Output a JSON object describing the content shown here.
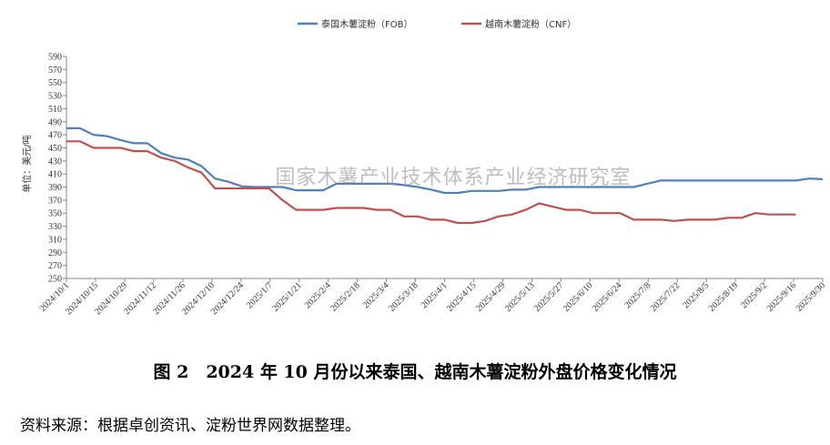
{
  "chart_data": {
    "type": "line",
    "ylabel": "单位：美元/吨",
    "ylim": [
      250,
      590
    ],
    "yticks": [
      250,
      270,
      290,
      310,
      330,
      350,
      370,
      390,
      410,
      430,
      450,
      470,
      490,
      510,
      530,
      550,
      570,
      590
    ],
    "grid": false,
    "legend_position": "top-center",
    "x_tick_labels": [
      "2024/10/1",
      "2024/10/15",
      "2024/10/29",
      "2024/11/12",
      "2024/11/26",
      "2024/12/10",
      "2024/12/24",
      "2025/1/7",
      "2025/1/21",
      "2025/2/4",
      "2025/2/18",
      "2025/3/4",
      "2025/3/18",
      "2025/4/1",
      "2025/4/15",
      "2025/4/29",
      "2025/5/13",
      "2025/5/27",
      "2025/6/10",
      "2025/6/24",
      "2025/7/8",
      "2025/7/22",
      "2025/8/5",
      "2025/8/19",
      "2025/9/2",
      "2025/9/16",
      "2025/9/30"
    ],
    "x_step_days": 7,
    "series": [
      {
        "name": "泰国木薯淀粉（FOB）",
        "color": "#4F81BD",
        "values": [
          480,
          480,
          470,
          468,
          462,
          457,
          457,
          442,
          435,
          432,
          422,
          403,
          398,
          391,
          390,
          390,
          390,
          385,
          385,
          385,
          395,
          395,
          395,
          395,
          395,
          393,
          390,
          386,
          381,
          381,
          384,
          384,
          384,
          386,
          386,
          390,
          390,
          390,
          390,
          390,
          390,
          390,
          390,
          395,
          400,
          400,
          400,
          400,
          400,
          400,
          400,
          400,
          400,
          400,
          400,
          403,
          402
        ]
      },
      {
        "name": "越南木薯淀粉（CNF）",
        "color": "#C0504D",
        "values": [
          460,
          460,
          450,
          450,
          450,
          445,
          445,
          435,
          430,
          420,
          412,
          388,
          388,
          388,
          388,
          388,
          370,
          355,
          355,
          355,
          358,
          358,
          358,
          355,
          355,
          345,
          345,
          340,
          340,
          335,
          335,
          338,
          345,
          348,
          355,
          365,
          360,
          355,
          355,
          350,
          350,
          350,
          340,
          340,
          340,
          338,
          340,
          340,
          340,
          343,
          343,
          350,
          348,
          348,
          348
        ]
      }
    ]
  },
  "watermark": "国家木薯产业技术体系产业经济研究室",
  "caption": "图 2　2024 年 10 月份以来泰国、越南木薯淀粉外盘价格变化情况",
  "source": "资料来源：根据卓创资讯、淀粉世界网数据整理。"
}
